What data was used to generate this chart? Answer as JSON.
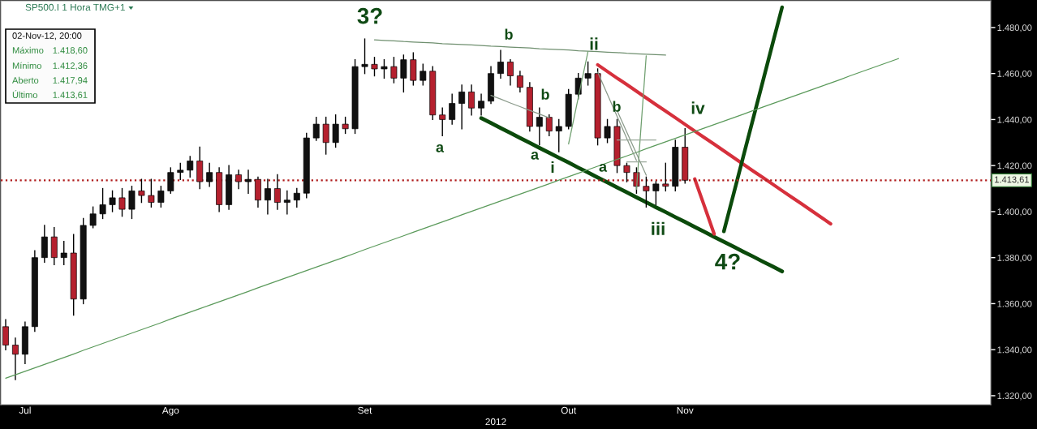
{
  "chart_data": {
    "type": "candlestick",
    "title": "SP500.I 1 Hora TMG+1",
    "xlabel": "2012",
    "categories": [
      null,
      null,
      "Jul",
      null,
      null,
      null,
      null,
      null,
      null,
      null,
      null,
      null,
      null,
      null,
      null,
      null,
      null,
      "Ago",
      null,
      null,
      null,
      null,
      null,
      null,
      null,
      null,
      null,
      null,
      null,
      null,
      null,
      null,
      null,
      null,
      null,
      null,
      null,
      "Set",
      null,
      null,
      null,
      null,
      null,
      null,
      null,
      null,
      null,
      null,
      null,
      null,
      null,
      null,
      null,
      null,
      null,
      null,
      null,
      null,
      "Out",
      null,
      null,
      null,
      null,
      null,
      null,
      null,
      null,
      null,
      null,
      null,
      "Nov",
      null,
      null,
      null,
      null,
      null,
      null,
      null,
      null,
      null,
      null,
      null,
      null,
      null,
      null,
      null,
      null,
      null,
      null,
      null,
      null,
      null,
      null,
      null,
      null,
      null,
      null,
      null,
      null,
      null,
      null,
      null
    ],
    "ohlc": [
      [
        1350,
        1353,
        1340,
        1342
      ],
      [
        1342,
        1345,
        1327,
        1338
      ],
      [
        1338,
        1352,
        1334,
        1350
      ],
      [
        1350,
        1383,
        1348,
        1380
      ],
      [
        1380,
        1394,
        1378,
        1389
      ],
      [
        1389,
        1393,
        1377,
        1380
      ],
      [
        1380,
        1387,
        1377,
        1382
      ],
      [
        1382,
        1390,
        1355,
        1362
      ],
      [
        1362,
        1397,
        1360,
        1394
      ],
      [
        1394,
        1402,
        1393,
        1399
      ],
      [
        1399,
        1410,
        1397,
        1403
      ],
      [
        1403,
        1409,
        1400,
        1406
      ],
      [
        1406,
        1410,
        1398,
        1401
      ],
      [
        1401,
        1411,
        1397,
        1409
      ],
      [
        1409,
        1414,
        1404,
        1407
      ],
      [
        1407,
        1414,
        1402,
        1404
      ],
      [
        1404,
        1411,
        1402,
        1409
      ],
      [
        1409,
        1419,
        1408,
        1417
      ],
      [
        1417,
        1421,
        1414,
        1418
      ],
      [
        1418,
        1424,
        1415,
        1422
      ],
      [
        1422,
        1428,
        1410,
        1413
      ],
      [
        1413,
        1421,
        1411,
        1417
      ],
      [
        1417,
        1419,
        1400,
        1403
      ],
      [
        1403,
        1420,
        1401,
        1416
      ],
      [
        1416,
        1418,
        1410,
        1413
      ],
      [
        1413,
        1418,
        1408,
        1414
      ],
      [
        1414,
        1415,
        1402,
        1405
      ],
      [
        1405,
        1414,
        1399,
        1410
      ],
      [
        1410,
        1416,
        1401,
        1404
      ],
      [
        1404,
        1409,
        1399,
        1405
      ],
      [
        1405,
        1410,
        1402,
        1408
      ],
      [
        1408,
        1434,
        1406,
        1432
      ],
      [
        1432,
        1441,
        1431,
        1438
      ],
      [
        1438,
        1441,
        1425,
        1430
      ],
      [
        1430,
        1442,
        1428,
        1438
      ],
      [
        1438,
        1441,
        1434,
        1436
      ],
      [
        1436,
        1466,
        1434,
        1463
      ],
      [
        1463,
        1475,
        1460,
        1464
      ],
      [
        1464,
        1467,
        1459,
        1462
      ],
      [
        1462,
        1466,
        1458,
        1463
      ],
      [
        1463,
        1467,
        1456,
        1458
      ],
      [
        1458,
        1468,
        1452,
        1466
      ],
      [
        1466,
        1469,
        1455,
        1457
      ],
      [
        1457,
        1464,
        1455,
        1461
      ],
      [
        1461,
        1463,
        1440,
        1442
      ],
      [
        1442,
        1445,
        1433,
        1440
      ],
      [
        1440,
        1451,
        1438,
        1447
      ],
      [
        1447,
        1455,
        1436,
        1452
      ],
      [
        1452,
        1455,
        1442,
        1445
      ],
      [
        1445,
        1451,
        1442,
        1448
      ],
      [
        1448,
        1463,
        1447,
        1460
      ],
      [
        1460,
        1470,
        1458,
        1465
      ],
      [
        1465,
        1466,
        1455,
        1459
      ],
      [
        1459,
        1461,
        1452,
        1454
      ],
      [
        1454,
        1456,
        1435,
        1437
      ],
      [
        1437,
        1445,
        1429,
        1441
      ],
      [
        1441,
        1442,
        1433,
        1435
      ],
      [
        1435,
        1440,
        1426,
        1437
      ],
      [
        1437,
        1453,
        1436,
        1451
      ],
      [
        1451,
        1460,
        1449,
        1458
      ],
      [
        1458,
        1465,
        1455,
        1460
      ],
      [
        1460,
        1462,
        1429,
        1432
      ],
      [
        1432,
        1440,
        1430,
        1437
      ],
      [
        1437,
        1440,
        1417,
        1420
      ],
      [
        1420,
        1421,
        1413,
        1417
      ],
      [
        1417,
        1419,
        1408,
        1411
      ],
      [
        1411,
        1415,
        1402,
        1409
      ],
      [
        1409,
        1413,
        1403,
        1412
      ],
      [
        1412,
        1421,
        1409,
        1411
      ],
      [
        1411,
        1431,
        1409,
        1428
      ],
      [
        1428,
        1436,
        1412.36,
        1413.61
      ],
      null,
      null,
      null,
      null,
      null,
      null,
      null,
      null,
      null,
      null,
      null,
      null,
      null,
      null,
      null,
      null,
      null,
      null,
      null,
      null,
      null,
      null,
      null,
      null,
      null,
      null,
      null,
      null,
      null,
      null,
      null
    ],
    "colors": [
      "#b5202e",
      "#b5202e",
      "#111111",
      "#111111",
      "#111111",
      "#b5202e",
      "#111111",
      "#b5202e",
      "#111111",
      "#111111",
      "#111111",
      "#111111",
      "#b5202e",
      "#111111",
      "#b5202e",
      "#b5202e",
      "#111111",
      "#111111",
      "#111111",
      "#111111",
      "#b5202e",
      "#111111",
      "#b5202e",
      "#111111",
      "#b5202e",
      "#111111",
      "#b5202e",
      "#111111",
      "#b5202e",
      "#111111",
      "#111111",
      "#111111",
      "#111111",
      "#b5202e",
      "#111111",
      "#b5202e",
      "#111111",
      "#111111",
      "#b5202e",
      "#111111",
      "#b5202e",
      "#111111",
      "#b5202e",
      "#111111",
      "#b5202e",
      "#b5202e",
      "#111111",
      "#111111",
      "#b5202e",
      "#111111",
      "#111111",
      "#111111",
      "#b5202e",
      "#b5202e",
      "#b5202e",
      "#111111",
      "#b5202e",
      "#111111",
      "#111111",
      "#111111",
      "#111111",
      "#b5202e",
      "#111111",
      "#b5202e",
      "#b5202e",
      "#b5202e",
      "#b5202e",
      "#111111",
      "#b5202e",
      "#111111",
      "#b5202e",
      null,
      null,
      null,
      null,
      null,
      null,
      null,
      null,
      null,
      null,
      null,
      null,
      null,
      null,
      null,
      null,
      null,
      null,
      null,
      null,
      null,
      null,
      null,
      null,
      null,
      null,
      null,
      null,
      null,
      null,
      null
    ],
    "series": [
      {
        "type": "line",
        "color": "#5b9a5b",
        "values": [
          1327.6,
          1329.1,
          1330.6,
          1332.1,
          1333.6,
          1335.1,
          1336.6,
          1338.1,
          1339.7,
          1341.2,
          1342.7,
          1344.2,
          1345.7,
          1347.2,
          1348.7,
          1350.2,
          1351.7,
          1353.3,
          1354.8,
          1356.3,
          1357.8,
          1359.3,
          1360.8,
          1362.3,
          1363.8,
          1365.3,
          1366.9,
          1368.4,
          1369.9,
          1371.4,
          1372.9,
          1374.4,
          1375.9,
          1377.4,
          1378.9,
          1380.4,
          1381.9,
          1383.5,
          1385.0,
          1386.5,
          1388.0,
          1389.5,
          1391.0,
          1392.5,
          1394.0,
          1395.5,
          1397.0,
          1398.6,
          1400.1,
          1401.6,
          1403.1,
          1404.6,
          1406.1,
          1407.6,
          1409.1,
          1410.6,
          1412.1,
          1413.7,
          1415.2,
          1416.7,
          1418.2,
          1419.7,
          1421.2,
          1422.7,
          1424.2,
          1425.7,
          1427.3,
          1428.8,
          1430.3,
          1431.8,
          1433.3,
          1434.8,
          1436.3,
          1437.8,
          1439.3,
          1440.8,
          1442.3,
          1443.9,
          1445.4,
          1446.9,
          1448.4,
          1449.9,
          1451.4,
          1452.9,
          1454.4,
          1455.9,
          1457.4,
          1459.0,
          1460.5,
          1462.0,
          1463.5,
          1465.0,
          1466.5,
          null,
          null,
          null,
          null,
          null,
          null,
          null,
          null,
          null
        ]
      },
      {
        "type": "line",
        "color": "#6f8f6f",
        "values": [
          null,
          null,
          null,
          null,
          null,
          null,
          null,
          null,
          null,
          null,
          null,
          null,
          null,
          null,
          null,
          null,
          null,
          null,
          null,
          null,
          null,
          null,
          null,
          null,
          null,
          null,
          null,
          null,
          null,
          null,
          null,
          null,
          null,
          null,
          null,
          null,
          null,
          null,
          1474.6,
          1474.4,
          1474.2,
          1473.9,
          1473.7,
          1473.5,
          1473.3,
          1473.0,
          1472.8,
          1472.6,
          1472.4,
          1472.2,
          1471.9,
          1471.7,
          1471.5,
          1471.3,
          1471.1,
          1470.8,
          1470.6,
          1470.4,
          1470.2,
          1469.9,
          1469.7,
          1469.5,
          1469.3,
          1469.1,
          1468.8,
          1468.6,
          1468.4,
          1468.2,
          1468.0,
          null,
          null,
          null,
          null,
          null,
          null,
          null,
          null,
          null,
          null,
          null,
          null,
          null,
          null,
          null,
          null,
          null,
          null,
          null,
          null,
          null,
          null,
          null,
          null,
          null,
          null,
          null,
          null,
          null,
          null,
          null,
          null,
          null
        ]
      },
      {
        "type": "line",
        "color": "#0b4a0b",
        "values": [
          null,
          null,
          null,
          null,
          null,
          null,
          null,
          null,
          null,
          null,
          null,
          null,
          null,
          null,
          null,
          null,
          null,
          null,
          null,
          null,
          null,
          null,
          null,
          null,
          null,
          null,
          null,
          null,
          null,
          null,
          null,
          null,
          null,
          null,
          null,
          null,
          null,
          null,
          null,
          null,
          null,
          null,
          null,
          null,
          null,
          null,
          null,
          null,
          null,
          1440.6,
          1438.5,
          1436.3,
          1434.2,
          1432.0,
          1429.9,
          1427.7,
          1425.6,
          1423.4,
          1421.3,
          1419.1,
          1417.0,
          1414.8,
          1412.7,
          1410.5,
          1408.4,
          1406.2,
          1404.1,
          1401.9,
          1399.8,
          1397.6,
          1395.5,
          1393.3,
          1391.2,
          1389.0,
          1386.9,
          1384.8,
          1382.6,
          1380.5,
          1378.3,
          1376.2,
          1374.0,
          null,
          null,
          null,
          null,
          null,
          null,
          null,
          null,
          null,
          null,
          null,
          null,
          null,
          null,
          null,
          null,
          null,
          null,
          null,
          null,
          null
        ]
      },
      {
        "type": "line",
        "color": "#d6303c",
        "values": [
          null,
          null,
          null,
          null,
          null,
          null,
          null,
          null,
          null,
          null,
          null,
          null,
          null,
          null,
          null,
          null,
          null,
          null,
          null,
          null,
          null,
          null,
          null,
          null,
          null,
          null,
          null,
          null,
          null,
          null,
          null,
          null,
          null,
          null,
          null,
          null,
          null,
          null,
          null,
          null,
          null,
          null,
          null,
          null,
          null,
          null,
          null,
          null,
          null,
          null,
          null,
          null,
          null,
          null,
          null,
          null,
          null,
          null,
          null,
          null,
          null,
          1463.8,
          1460.9,
          1458.0,
          1455.2,
          1452.3,
          1449.4,
          1446.5,
          1443.7,
          1440.8,
          1437.9,
          1435.0,
          1432.1,
          1429.3,
          1426.4,
          1423.5,
          1420.6,
          1417.7,
          1414.9,
          1412.0,
          1409.1,
          1406.2,
          1403.4,
          1400.5,
          1397.6,
          1394.7,
          null,
          null,
          null,
          null,
          null,
          null,
          null,
          null,
          null,
          null,
          null,
          null,
          null,
          null,
          null,
          null
        ]
      },
      {
        "type": "line",
        "color": "#d6303c",
        "values": [
          null,
          null,
          null,
          null,
          null,
          null,
          null,
          null,
          null,
          null,
          null,
          null,
          null,
          null,
          null,
          null,
          null,
          null,
          null,
          null,
          null,
          null,
          null,
          null,
          null,
          null,
          null,
          null,
          null,
          null,
          null,
          null,
          null,
          null,
          null,
          null,
          null,
          null,
          null,
          null,
          null,
          null,
          null,
          null,
          null,
          null,
          null,
          null,
          null,
          null,
          null,
          null,
          null,
          null,
          null,
          null,
          null,
          null,
          null,
          null,
          null,
          null,
          null,
          null,
          null,
          null,
          null,
          null,
          null,
          null,
          null,
          1414.2,
          1402.3,
          1390.3,
          null,
          null,
          null,
          null,
          null,
          null,
          null,
          null,
          null,
          null,
          null,
          null,
          null,
          null,
          null,
          null,
          null,
          null,
          null,
          null,
          null,
          null,
          null,
          null,
          null,
          null,
          null,
          null
        ]
      },
      {
        "type": "line",
        "color": "#0b4a0b",
        "values": [
          null,
          null,
          null,
          null,
          null,
          null,
          null,
          null,
          null,
          null,
          null,
          null,
          null,
          null,
          null,
          null,
          null,
          null,
          null,
          null,
          null,
          null,
          null,
          null,
          null,
          null,
          null,
          null,
          null,
          null,
          null,
          null,
          null,
          null,
          null,
          null,
          null,
          null,
          null,
          null,
          null,
          null,
          null,
          null,
          null,
          null,
          null,
          null,
          null,
          null,
          null,
          null,
          null,
          null,
          null,
          null,
          null,
          null,
          null,
          null,
          null,
          null,
          null,
          null,
          null,
          null,
          null,
          null,
          null,
          null,
          null,
          null,
          null,
          null,
          1391.4,
          1407.6,
          1423.9,
          1440.1,
          1456.3,
          1472.6,
          1488.8,
          null,
          null,
          null,
          null,
          null,
          null,
          null,
          null,
          null,
          null,
          null,
          null,
          null,
          null,
          null,
          null,
          null,
          null,
          null,
          null,
          null
        ]
      },
      {
        "type": "line",
        "color": "#8a9a8a",
        "values": [
          null,
          null,
          null,
          null,
          null,
          null,
          null,
          null,
          null,
          null,
          null,
          null,
          null,
          null,
          null,
          null,
          null,
          null,
          null,
          null,
          null,
          null,
          null,
          null,
          null,
          null,
          null,
          null,
          null,
          null,
          null,
          null,
          null,
          null,
          null,
          null,
          null,
          null,
          null,
          null,
          null,
          null,
          null,
          null,
          null,
          null,
          null,
          null,
          null,
          null,
          1450.5,
          1448.9,
          1447.2,
          1445.6,
          1444.0,
          1442.4,
          1440.7,
          null,
          null,
          null,
          null,
          null,
          null,
          null,
          null,
          null,
          null,
          null,
          null,
          null,
          null,
          null,
          null,
          null,
          null,
          null,
          null,
          null,
          null,
          null,
          null,
          null,
          null,
          null,
          null,
          null,
          null,
          null,
          null,
          null,
          null,
          null,
          null,
          null,
          null,
          null,
          null,
          null,
          null,
          null,
          null,
          null
        ]
      },
      {
        "type": "line",
        "color": "#6f9f6f",
        "values": [
          null,
          null,
          null,
          null,
          null,
          null,
          null,
          null,
          null,
          null,
          null,
          null,
          null,
          null,
          null,
          null,
          null,
          null,
          null,
          null,
          null,
          null,
          null,
          null,
          null,
          null,
          null,
          null,
          null,
          null,
          null,
          null,
          null,
          null,
          null,
          null,
          null,
          null,
          null,
          null,
          null,
          null,
          null,
          null,
          null,
          null,
          null,
          null,
          null,
          null,
          null,
          null,
          null,
          null,
          null,
          null,
          null,
          null,
          1429.4,
          1449.5,
          1469.5,
          null,
          null,
          null,
          null,
          null,
          null,
          null,
          null,
          null,
          null,
          null,
          null,
          null,
          null,
          null,
          null,
          null,
          null,
          null,
          null,
          null,
          null,
          null,
          null,
          null,
          null,
          null,
          null,
          null,
          null,
          null,
          null,
          null,
          null,
          null,
          null,
          null,
          null,
          null,
          null,
          null
        ]
      },
      {
        "type": "line",
        "color": "#8a9a8a",
        "values": [
          null,
          null,
          null,
          null,
          null,
          null,
          null,
          null,
          null,
          null,
          null,
          null,
          null,
          null,
          null,
          null,
          null,
          null,
          null,
          null,
          null,
          null,
          null,
          null,
          null,
          null,
          null,
          null,
          null,
          null,
          null,
          null,
          null,
          null,
          null,
          null,
          null,
          null,
          null,
          null,
          null,
          null,
          null,
          null,
          null,
          null,
          null,
          null,
          null,
          null,
          null,
          null,
          null,
          null,
          null,
          null,
          null,
          null,
          null,
          null,
          null,
          1460.6,
          1451.0,
          1441.4,
          1431.8,
          1422.2,
          null,
          null,
          null,
          null,
          null,
          null,
          null,
          null,
          null,
          null,
          null,
          null,
          null,
          null,
          null,
          null,
          null,
          null,
          null,
          null,
          null,
          null,
          null,
          null,
          null,
          null,
          null,
          null,
          null,
          null,
          null,
          null,
          null,
          null,
          null,
          null
        ]
      },
      {
        "type": "line",
        "color": "#6f9f6f",
        "values": [
          null,
          null,
          null,
          null,
          null,
          null,
          null,
          null,
          null,
          null,
          null,
          null,
          null,
          null,
          null,
          null,
          null,
          null,
          null,
          null,
          null,
          null,
          null,
          null,
          null,
          null,
          null,
          null,
          null,
          null,
          null,
          null,
          null,
          null,
          null,
          null,
          null,
          null,
          null,
          null,
          null,
          null,
          null,
          null,
          null,
          null,
          null,
          null,
          null,
          null,
          null,
          null,
          null,
          null,
          null,
          null,
          null,
          null,
          null,
          null,
          null,
          null,
          null,
          null,
          null,
          1409.7,
          1467.7,
          null,
          null,
          null,
          null,
          null,
          null,
          null,
          null,
          null,
          null,
          null,
          null,
          null,
          null,
          null,
          null,
          null,
          null,
          null,
          null,
          null,
          null,
          null,
          null,
          null,
          null,
          null,
          null,
          null,
          null,
          null,
          null,
          null,
          null,
          null
        ]
      },
      {
        "type": "line",
        "color": "#9aa89a",
        "values": [
          null,
          null,
          null,
          null,
          null,
          null,
          null,
          null,
          null,
          null,
          null,
          null,
          null,
          null,
          null,
          null,
          null,
          null,
          null,
          null,
          null,
          null,
          null,
          null,
          null,
          null,
          null,
          null,
          null,
          null,
          null,
          null,
          null,
          null,
          null,
          null,
          null,
          null,
          null,
          null,
          null,
          null,
          null,
          null,
          null,
          null,
          null,
          null,
          null,
          null,
          null,
          null,
          null,
          null,
          null,
          null,
          null,
          null,
          null,
          null,
          null,
          null,
          null,
          1431.1,
          1431.1,
          1431.1,
          1431.1,
          1431.1,
          null,
          null,
          null,
          null,
          null,
          null,
          null,
          null,
          null,
          null,
          null,
          null,
          null,
          null,
          null,
          null,
          null,
          null,
          null,
          null,
          null,
          null,
          null,
          null,
          null,
          null,
          null,
          null,
          null,
          null,
          null,
          null,
          null,
          null
        ]
      },
      {
        "type": "line",
        "color": "#9aa89a",
        "values": [
          null,
          null,
          null,
          null,
          null,
          null,
          null,
          null,
          null,
          null,
          null,
          null,
          null,
          null,
          null,
          null,
          null,
          null,
          null,
          null,
          null,
          null,
          null,
          null,
          null,
          null,
          null,
          null,
          null,
          null,
          null,
          null,
          null,
          null,
          null,
          null,
          null,
          null,
          null,
          null,
          null,
          null,
          null,
          null,
          null,
          null,
          null,
          null,
          null,
          null,
          null,
          null,
          null,
          null,
          null,
          null,
          null,
          null,
          null,
          null,
          null,
          null,
          null,
          null,
          1421.6,
          1421.6,
          1421.6,
          null,
          null,
          null,
          null,
          null,
          null,
          null,
          null,
          null,
          null,
          null,
          null,
          null,
          null,
          null,
          null,
          null,
          null,
          null,
          null,
          null,
          null,
          null,
          null,
          null,
          null,
          null,
          null,
          null,
          null,
          null,
          null,
          null,
          null,
          null
        ]
      },
      {
        "type": "line",
        "color": "#8a9a8a",
        "values": [
          null,
          null,
          null,
          null,
          null,
          null,
          null,
          null,
          null,
          null,
          null,
          null,
          null,
          null,
          null,
          null,
          null,
          null,
          null,
          null,
          null,
          null,
          null,
          null,
          null,
          null,
          null,
          null,
          null,
          null,
          null,
          null,
          null,
          null,
          null,
          null,
          null,
          null,
          null,
          null,
          null,
          null,
          null,
          null,
          null,
          null,
          null,
          null,
          null,
          null,
          null,
          null,
          null,
          null,
          null,
          null,
          null,
          null,
          null,
          null,
          null,
          null,
          null,
          1443.9,
          1434.5,
          1425.2,
          1415.8,
          null,
          null,
          null,
          null,
          null,
          null,
          null,
          null,
          null,
          null,
          null,
          null,
          null,
          null,
          null,
          null,
          null,
          null,
          null,
          null,
          null,
          null,
          null,
          null,
          null,
          null,
          null,
          null,
          null,
          null,
          null,
          null,
          null,
          null,
          null
        ]
      }
    ],
    "ylim": [
      1316.1,
      1491.6
    ],
    "yticks": [
      {
        "value": 1320,
        "label": "1.320,00"
      },
      {
        "value": 1340,
        "label": "1.340,00"
      },
      {
        "value": 1360,
        "label": "1.360,00"
      },
      {
        "value": 1380,
        "label": "1.380,00"
      },
      {
        "value": 1400,
        "label": "1.400,00"
      },
      {
        "value": 1420,
        "label": "1.420,00"
      },
      {
        "value": 1440,
        "label": "1.440,00"
      },
      {
        "value": 1460,
        "label": "1.460,00"
      },
      {
        "value": 1480,
        "label": "1.480,00"
      }
    ],
    "ref_lines": [
      {
        "axis": "y",
        "value": 1413.61,
        "label": "1.413,61",
        "color": "#b01c1c",
        "line_style": "dotted"
      }
    ],
    "annotations": [
      "02-Nov-12, 20:00",
      "Máximo",
      "1.418,60",
      "Mínimo",
      "1.412,36",
      "Aberto",
      "1.417,94",
      "Último",
      "1.413,61",
      "3?",
      "b",
      "ii",
      "b",
      "b",
      "iv",
      "a",
      "a",
      "i",
      "a",
      "iii",
      "4?"
    ]
  }
}
